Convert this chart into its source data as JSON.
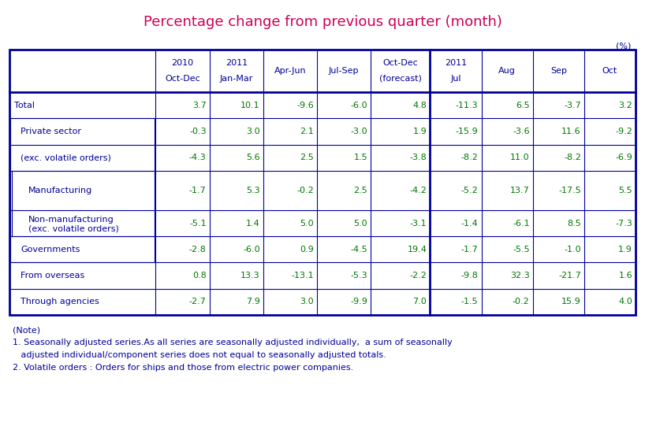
{
  "title": "Percentage change from previous quarter (month)",
  "title_color": "#CC0055",
  "unit_label": "(%)",
  "col_headers_display": [
    [
      "2010",
      "Oct-Dec"
    ],
    [
      "2011",
      "Jan-Mar"
    ],
    [
      "Apr-Jun",
      ""
    ],
    [
      "Jul-Sep",
      ""
    ],
    [
      "Oct-Dec",
      "(forecast)"
    ],
    [
      "2011",
      "Jul"
    ],
    [
      "Aug",
      ""
    ],
    [
      "Sep",
      ""
    ],
    [
      "Oct",
      ""
    ]
  ],
  "row_labels_display": [
    "Total",
    "Private sector",
    "(exc. volatile orders)",
    "Manufacturing",
    "Non-manufacturing\n(exc. volatile orders)",
    "Governments",
    "From overseas",
    "Through agencies"
  ],
  "row_indent": [
    0,
    1,
    1,
    2,
    2,
    1,
    1,
    1
  ],
  "data": [
    [
      "3.7",
      "10.1",
      "-9.6",
      "-6.0",
      "4.8",
      "-11.3",
      "6.5",
      "-3.7",
      "3.2"
    ],
    [
      "-0.3",
      "3.0",
      "2.1",
      "-3.0",
      "1.9",
      "-15.9",
      "-3.6",
      "11.6",
      "-9.2"
    ],
    [
      "-4.3",
      "5.6",
      "2.5",
      "1.5",
      "-3.8",
      "-8.2",
      "11.0",
      "-8.2",
      "-6.9"
    ],
    [
      "-1.7",
      "5.3",
      "-0.2",
      "2.5",
      "-4.2",
      "-5.2",
      "13.7",
      "-17.5",
      "5.5"
    ],
    [
      "-5.1",
      "1.4",
      "5.0",
      "5.0",
      "-3.1",
      "-1.4",
      "-6.1",
      "8.5",
      "-7.3"
    ],
    [
      "-2.8",
      "-6.0",
      "0.9",
      "-4.5",
      "19.4",
      "-1.7",
      "-5.5",
      "-1.0",
      "1.9"
    ],
    [
      "0.8",
      "13.3",
      "-13.1",
      "-5.3",
      "-2.2",
      "-9.8",
      "32.3",
      "-21.7",
      "1.6"
    ],
    [
      "-2.7",
      "7.9",
      "3.0",
      "-9.9",
      "7.0",
      "-1.5",
      "-0.2",
      "15.9",
      "4.0"
    ]
  ],
  "data_color": "#007700",
  "header_color": "#000099",
  "label_color": "#000099",
  "border_color": "#000099",
  "note_lines": [
    "(Note)",
    "1. Seasonally adjusted series.As all series are seasonally adjusted individually,  a sum of seasonally",
    "   adjusted individual/component series does not equal to seasonally adjusted totals.",
    "2. Volatile orders : Orders for ships and those from electric power companies."
  ],
  "note_color": "#000099",
  "bg_color": "#ffffff"
}
